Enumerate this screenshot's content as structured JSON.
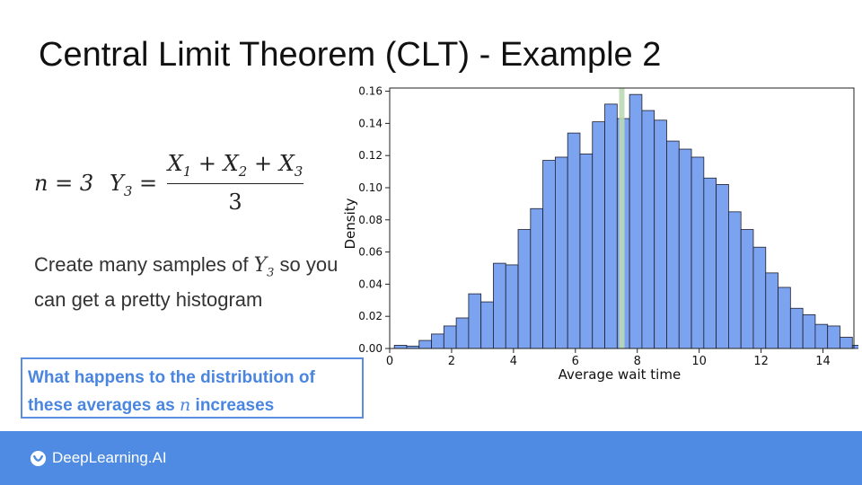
{
  "slide": {
    "title": "Central Limit Theorem (CLT) - Example 2",
    "formula": {
      "n_eq": "n = 3",
      "y_var": "Y",
      "y_sub": "3",
      "equals": "=",
      "numerator": {
        "x1": "X",
        "x1_sub": "1",
        "plus1": "+",
        "x2": "X",
        "x2_sub": "2",
        "plus2": "+",
        "x3": "X",
        "x3_sub": "3"
      },
      "denominator": "3"
    },
    "body": {
      "part1": "Create many samples of",
      "var": "Y",
      "var_sub": "3",
      "part2": "so you can get a pretty histogram"
    },
    "callout": {
      "part1": "What happens to the distribution of these averages as",
      "var": "n",
      "part2": "increases"
    },
    "footer": {
      "logo_text": "DeepLearning.AI"
    }
  },
  "colors": {
    "bar_fill": "#7ba3ef",
    "bar_stroke": "#1f1f2e",
    "mean_line": "#bcd9b4",
    "footer_bg": "#4f8be2",
    "callout_accent": "#4a86e0"
  },
  "chart_data": {
    "type": "bar",
    "title": "",
    "xlabel": "Average wait time",
    "ylabel": "Density",
    "xlim": [
      0,
      15
    ],
    "ylim": [
      0,
      0.162
    ],
    "xticks": [
      0,
      2,
      4,
      6,
      8,
      10,
      12,
      14
    ],
    "yticks": [
      0.0,
      0.02,
      0.04,
      0.06,
      0.08,
      0.1,
      0.12,
      0.14,
      0.16
    ],
    "bin_width": 0.4,
    "bins_start": 0.15,
    "values": [
      0.002,
      0.0015,
      0.005,
      0.009,
      0.014,
      0.019,
      0.034,
      0.029,
      0.053,
      0.052,
      0.074,
      0.087,
      0.117,
      0.119,
      0.134,
      0.121,
      0.141,
      0.152,
      0.143,
      0.158,
      0.148,
      0.142,
      0.129,
      0.124,
      0.119,
      0.106,
      0.102,
      0.085,
      0.074,
      0.063,
      0.047,
      0.038,
      0.025,
      0.021,
      0.015,
      0.014,
      0.007,
      0.002,
      0.0005
    ],
    "mean_line_x": 7.5,
    "grid": false
  }
}
